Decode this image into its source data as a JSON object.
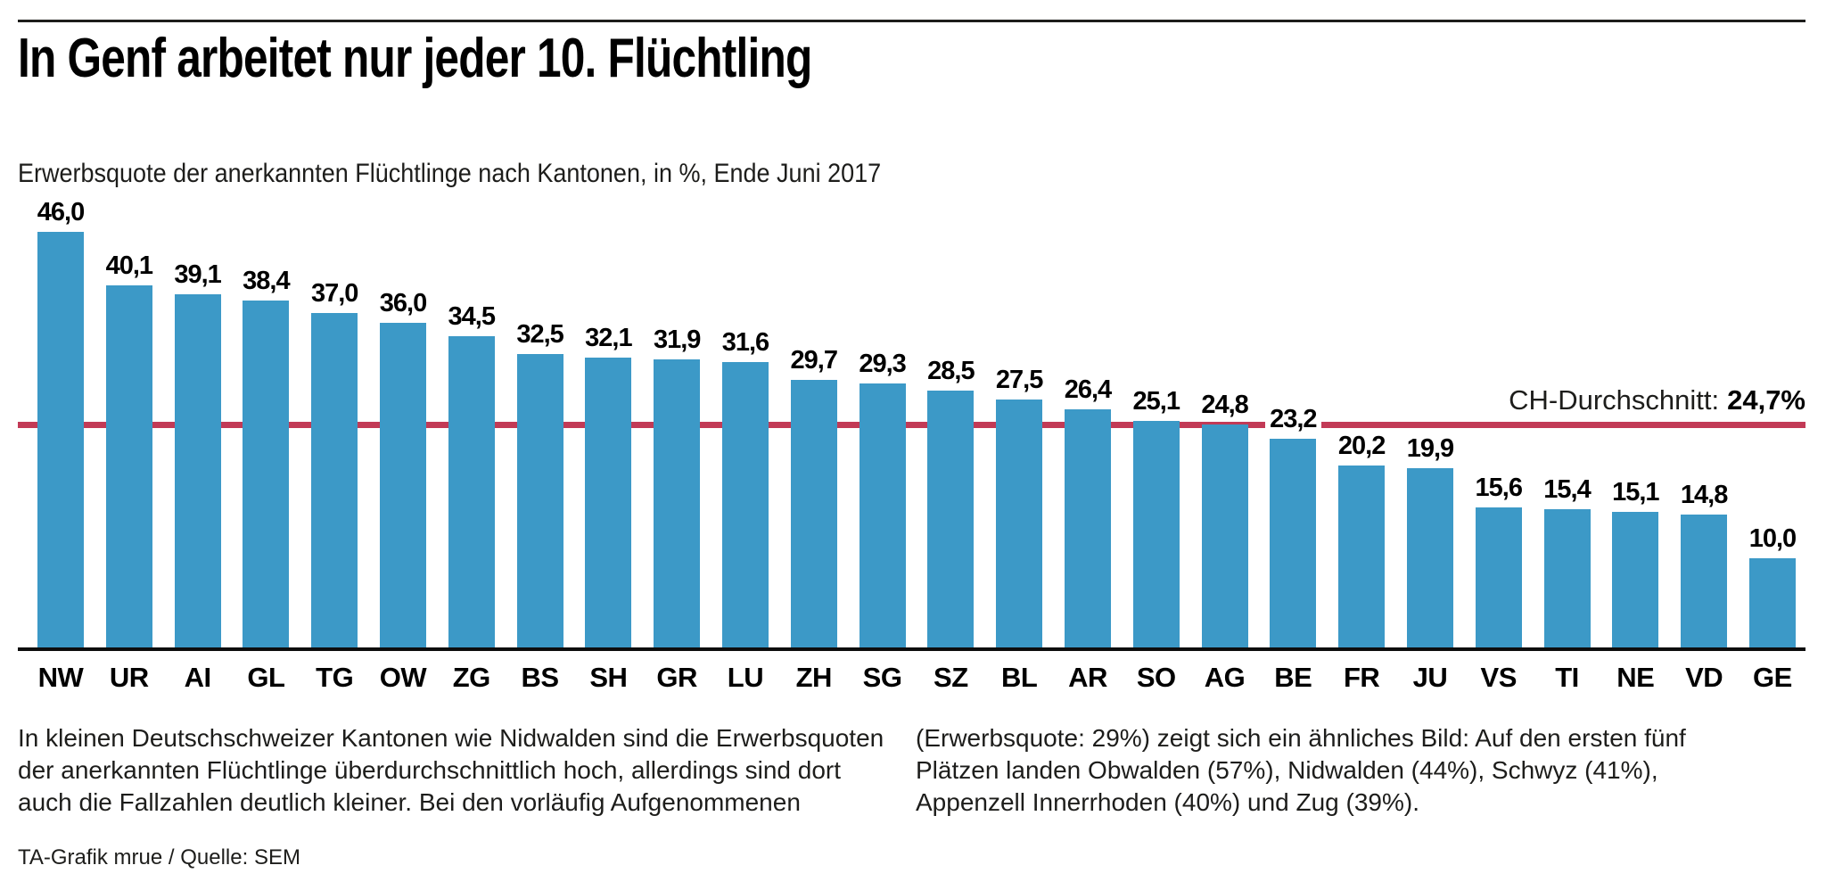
{
  "header": {
    "title": "In Genf arbeitet nur jeder 10. Flüchtling",
    "subtitle": "Erwerbsquote der anerkannten Flüchtlinge nach Kantonen, in %, Ende Juni 2017"
  },
  "chart_data": {
    "type": "bar",
    "title": "In Genf arbeitet nur jeder 10. Flüchtling",
    "subtitle": "Erwerbsquote der anerkannten Flüchtlinge nach Kantonen, in %, Ende Juni 2017",
    "categories": [
      "NW",
      "UR",
      "AI",
      "GL",
      "TG",
      "OW",
      "ZG",
      "BS",
      "SH",
      "GR",
      "LU",
      "ZH",
      "SG",
      "SZ",
      "BL",
      "AR",
      "SO",
      "AG",
      "BE",
      "FR",
      "JU",
      "VS",
      "TI",
      "NE",
      "VD",
      "GE"
    ],
    "values": [
      46.0,
      40.1,
      39.1,
      38.4,
      37.0,
      36.0,
      34.5,
      32.5,
      32.1,
      31.9,
      31.6,
      29.7,
      29.3,
      28.5,
      27.5,
      26.4,
      25.1,
      24.8,
      23.2,
      20.2,
      19.9,
      15.6,
      15.4,
      15.1,
      14.8,
      10.0
    ],
    "value_labels": [
      "46,0",
      "40,1",
      "39,1",
      "38,4",
      "37,0",
      "36,0",
      "34,5",
      "32,5",
      "32,1",
      "31,9",
      "31,6",
      "29,7",
      "29,3",
      "28,5",
      "27,5",
      "26,4",
      "25,1",
      "24,8",
      "23,2",
      "20,2",
      "19,9",
      "15,6",
      "15,4",
      "15,1",
      "14,8",
      "10,0"
    ],
    "xlabel": "",
    "ylabel": "",
    "ylim": [
      0,
      48
    ],
    "grid": false,
    "legend": false,
    "bar_color": "#3C99C7",
    "average": {
      "value": 24.7,
      "label_prefix": "CH-Durchschnitt:",
      "label_value": "24,7%",
      "line_color": "#C23A56"
    }
  },
  "body": {
    "left": "In kleinen Deutschschweizer Kantonen wie Nidwalden sind die Erwerbsquoten der anerkannten Flüchtlinge überdurchschnittlich hoch, allerdings sind dort auch die Fallzahlen deutlich kleiner. Bei den vorläufig Aufgenommenen",
    "right": "(Erwerbsquote: 29%) zeigt sich ein ähnliches Bild: Auf den ersten fünf Plätzen landen Obwalden (57%), Nidwalden (44%), Schwyz (41%), Appenzell Innerrhoden (40%) und Zug (39%)."
  },
  "footer": {
    "credit": "TA-Grafik mrue / Quelle: SEM"
  }
}
